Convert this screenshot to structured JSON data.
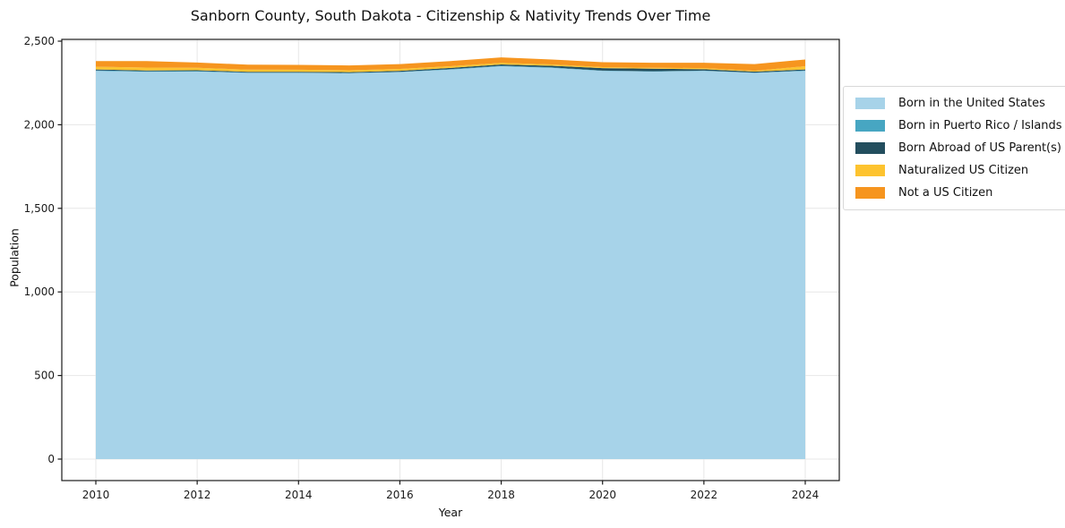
{
  "title": "Sanborn County, South Dakota - Citizenship & Nativity Trends Over Time",
  "chart_data": {
    "type": "area",
    "stacked": true,
    "title": "Sanborn County, South Dakota - Citizenship & Nativity Trends Over Time",
    "xlabel": "Year",
    "ylabel": "Population",
    "x": [
      2010,
      2011,
      2012,
      2013,
      2014,
      2015,
      2016,
      2017,
      2018,
      2019,
      2020,
      2021,
      2022,
      2023,
      2024
    ],
    "series": [
      {
        "name": "Born in the United States",
        "color": "#a7d3e9",
        "values": [
          2322,
          2317,
          2318,
          2310,
          2310,
          2308,
          2315,
          2330,
          2350,
          2340,
          2322,
          2318,
          2322,
          2310,
          2322
        ]
      },
      {
        "name": "Born in Puerto Rico / Islands",
        "color": "#47a6c2",
        "values": [
          3,
          3,
          3,
          2,
          2,
          2,
          2,
          3,
          3,
          3,
          2,
          2,
          2,
          2,
          3
        ]
      },
      {
        "name": "Born Abroad of US Parent(s)",
        "color": "#234e5e",
        "values": [
          6,
          5,
          5,
          5,
          5,
          5,
          6,
          7,
          8,
          10,
          15,
          15,
          8,
          6,
          6
        ]
      },
      {
        "name": "Naturalized US Citizen",
        "color": "#fdc32f",
        "values": [
          16,
          17,
          15,
          13,
          12,
          11,
          11,
          10,
          9,
          8,
          6,
          6,
          7,
          5,
          19
        ]
      },
      {
        "name": "Not a US Citizen",
        "color": "#f6951f",
        "values": [
          34,
          39,
          31,
          30,
          29,
          29,
          29,
          31,
          33,
          29,
          29,
          30,
          32,
          40,
          40
        ]
      }
    ],
    "x_ticks": [
      2010,
      2012,
      2014,
      2016,
      2018,
      2020,
      2022,
      2024
    ],
    "x_tick_labels": [
      "2010",
      "2012",
      "2014",
      "2016",
      "2018",
      "2020",
      "2022",
      "2024"
    ],
    "y_ticks": [
      0,
      500,
      1000,
      1500,
      2000,
      2500
    ],
    "y_tick_labels": [
      "0",
      "500",
      "1,000",
      "1,500",
      "2,000",
      "2,500"
    ],
    "ylim": [
      -128,
      2510
    ],
    "grid": true,
    "legend_position": "right",
    "grid_color": "#e7e7e7",
    "axis_color": "#1a1a1a"
  }
}
